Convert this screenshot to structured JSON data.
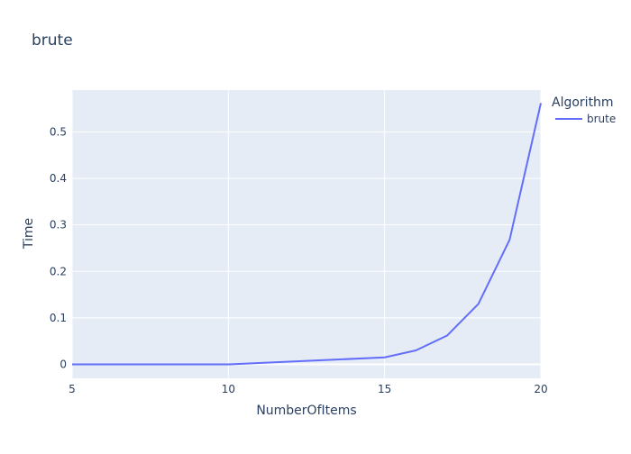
{
  "chart_data": {
    "type": "line",
    "title": "brute",
    "xlabel": "NumberOfItems",
    "ylabel": "Time",
    "xlim": [
      5,
      20
    ],
    "ylim": [
      -0.03,
      0.59
    ],
    "x_ticks": [
      5,
      10,
      15,
      20
    ],
    "y_ticks": [
      0,
      0.1,
      0.2,
      0.3,
      0.4,
      0.5
    ],
    "x_tick_labels": [
      "5",
      "10",
      "15",
      "20"
    ],
    "y_tick_labels": [
      "0",
      "0.1",
      "0.2",
      "0.3",
      "0.4",
      "0.5"
    ],
    "grid": true,
    "legend": {
      "title": "Algorithm",
      "placement": "right"
    },
    "series": [
      {
        "name": "brute",
        "color": "#636efa",
        "x": [
          5,
          10,
          15,
          16,
          17,
          18,
          19,
          20
        ],
        "y": [
          0.0,
          0.0,
          0.015,
          0.03,
          0.062,
          0.13,
          0.268,
          0.562
        ]
      }
    ]
  },
  "colors": {
    "plot_background": "#e5ecf6",
    "grid": "#ffffff",
    "text": "#2a3f5f"
  }
}
